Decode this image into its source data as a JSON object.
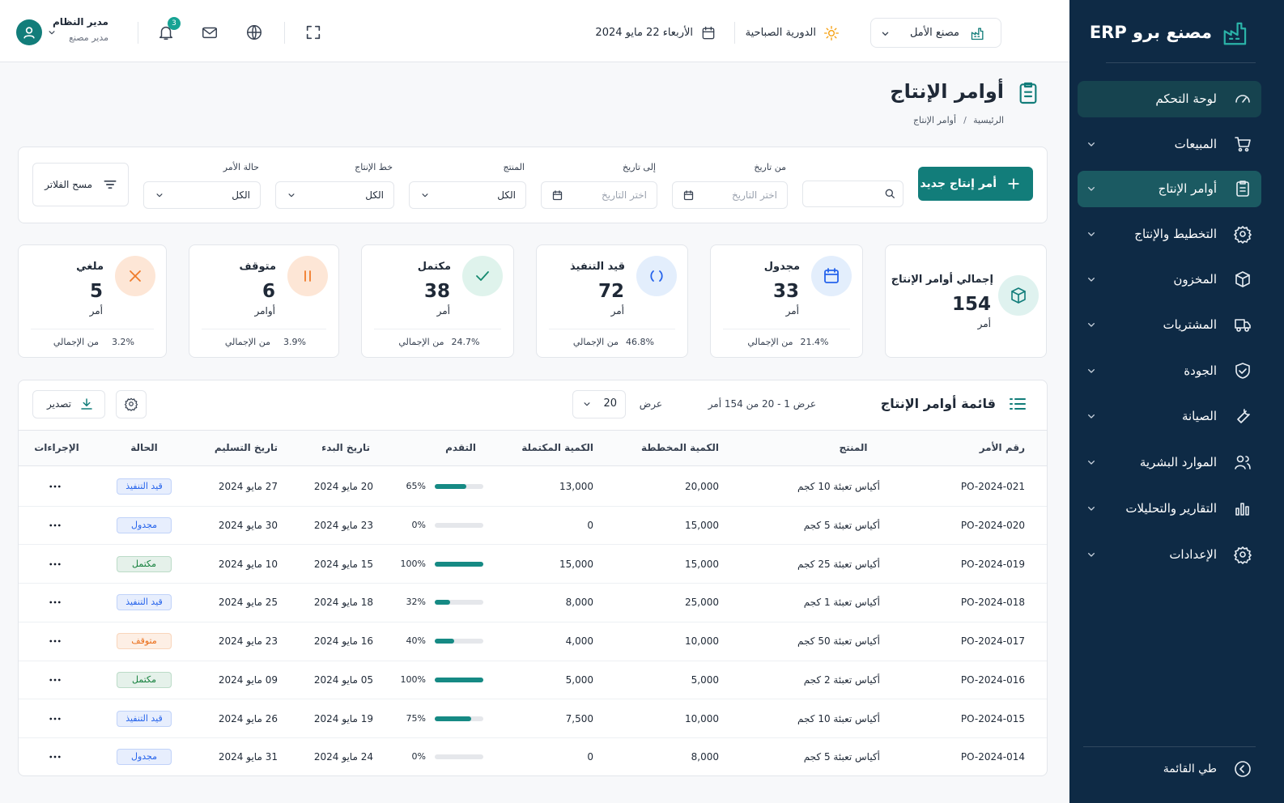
{
  "sidebar": {
    "brand": "مصنع برو ERP",
    "items": [
      {
        "label": "لوحة التحكم",
        "icon": "gauge",
        "submenu": false,
        "highlight": "#16434f"
      },
      {
        "label": "المبيعات",
        "icon": "cart",
        "submenu": true
      },
      {
        "label": "أوامر الإنتاج",
        "icon": "clip",
        "submenu": true,
        "highlight": "#1b5a62"
      },
      {
        "label": "التخطيط والإنتاج",
        "icon": "gear",
        "submenu": true
      },
      {
        "label": "المخزون",
        "icon": "box",
        "submenu": true
      },
      {
        "label": "المشتريات",
        "icon": "truck",
        "submenu": true
      },
      {
        "label": "الجودة",
        "icon": "shield",
        "submenu": true
      },
      {
        "label": "الصيانة",
        "icon": "wrench",
        "submenu": true
      },
      {
        "label": "الموارد البشرية",
        "icon": "people",
        "submenu": true
      },
      {
        "label": "التقارير والتحليلات",
        "icon": "chart",
        "submenu": true
      },
      {
        "label": "الإعدادات",
        "icon": "gear",
        "submenu": true
      }
    ],
    "collapse": "طي القائمة"
  },
  "header": {
    "user_name": "مدير النظام",
    "user_role": "مدير مصنع",
    "notifications": "3",
    "date": "الأربعاء 22 مايو 2024",
    "shift": "الدورية الصباحية",
    "factory": "مصنع الأمل"
  },
  "page": {
    "title": "أوامر الإنتاج",
    "breadcrumb": [
      "الرئيسية",
      "أوامر الإنتاج"
    ],
    "breadcrumb_separator": "/"
  },
  "filters": {
    "new_button": "أمر إنتاج جديد",
    "from_label": "من تاريخ",
    "to_label": "إلى تاريخ",
    "date_placeholder": "اختر التاريخ",
    "product_label": "المنتج",
    "line_label": "خط الإنتاج",
    "status_label": "حالة الأمر",
    "all": "الكل",
    "clear": "مسح الفلاتر"
  },
  "stats": {
    "total": {
      "label": "إجمالي أوامر الإنتاج",
      "value": 154,
      "unit": "أمر"
    },
    "share_label": "من الإجمالي",
    "cards": [
      {
        "label": "مجدول",
        "value": 33,
        "unit": "أمر",
        "percent": "21.4%",
        "color": "#2563eb",
        "bg": "#e3eefc",
        "icon": "cal"
      },
      {
        "label": "قيد التنفيذ",
        "value": 72,
        "unit": "أمر",
        "percent": "46.8%",
        "color": "#2563eb",
        "bg": "#e3eefc",
        "icon": "spin"
      },
      {
        "label": "مكتمل",
        "value": 38,
        "unit": "أمر",
        "percent": "24.7%",
        "color": "#15896f",
        "bg": "#dff3ec",
        "icon": "check"
      },
      {
        "label": "متوقف",
        "value": 6,
        "unit": "أوامر",
        "percent": "3.9%",
        "color": "#f07b2a",
        "bg": "#fde6d6",
        "icon": "pause"
      },
      {
        "label": "ملغي",
        "value": 5,
        "unit": "أمر",
        "percent": "3.2%",
        "color": "#f07b2a",
        "bg": "#fde6d6",
        "icon": "x"
      }
    ]
  },
  "table": {
    "title": "قائمة أوامر الإنتاج",
    "range": "عرض 1 - 20 من 154 أمر",
    "show": "عرض",
    "page_size": "20",
    "export": "تصدير",
    "columns": [
      "رقم الأمر",
      "المنتج",
      "الكمية المخططة",
      "الكمية المكتملة",
      "التقدم",
      "تاريخ البدء",
      "تاريخ التسليم",
      "الحالة",
      "الإجراءات"
    ],
    "rows": [
      {
        "id": "PO-2024-021",
        "product": "أكياس تعبئة 10 كجم",
        "planned": "20,000",
        "completed": "13,000",
        "progress": 65,
        "progress_label": "65%",
        "start": "20 مايو 2024",
        "end": "27 مايو 2024",
        "status": "قيد التنفيذ",
        "status_color": "#2563eb"
      },
      {
        "id": "PO-2024-020",
        "product": "أكياس تعبئة 5 كجم",
        "planned": "15,000",
        "completed": "0",
        "progress": 0,
        "progress_label": "0%",
        "start": "23 مايو 2024",
        "end": "30 مايو 2024",
        "status": "مجدول",
        "status_color": "#2563eb"
      },
      {
        "id": "PO-2024-019",
        "product": "أكياس تعبئة 25 كجم",
        "planned": "15,000",
        "completed": "15,000",
        "progress": 100,
        "progress_label": "100%",
        "start": "15 مايو 2024",
        "end": "10 مايو 2024",
        "status": "مكتمل",
        "status_color": "#15803d"
      },
      {
        "id": "PO-2024-018",
        "product": "أكياس تعبئة 1 كجم",
        "planned": "25,000",
        "completed": "8,000",
        "progress": 32,
        "progress_label": "32%",
        "start": "18 مايو 2024",
        "end": "25 مايو 2024",
        "status": "قيد التنفيذ",
        "status_color": "#2563eb"
      },
      {
        "id": "PO-2024-017",
        "product": "أكياس تعبئة 50 كجم",
        "planned": "10,000",
        "completed": "4,000",
        "progress": 40,
        "progress_label": "40%",
        "start": "16 مايو 2024",
        "end": "23 مايو 2024",
        "status": "متوقف",
        "status_color": "#ea6c16"
      },
      {
        "id": "PO-2024-016",
        "product": "أكياس تعبئة 2 كجم",
        "planned": "5,000",
        "completed": "5,000",
        "progress": 100,
        "progress_label": "100%",
        "start": "05 مايو 2024",
        "end": "09 مايو 2024",
        "status": "مكتمل",
        "status_color": "#15803d"
      },
      {
        "id": "PO-2024-015",
        "product": "أكياس تعبئة 10 كجم",
        "planned": "10,000",
        "completed": "7,500",
        "progress": 75,
        "progress_label": "75%",
        "start": "19 مايو 2024",
        "end": "26 مايو 2024",
        "status": "قيد التنفيذ",
        "status_color": "#2563eb"
      },
      {
        "id": "PO-2024-014",
        "product": "أكياس تعبئة 5 كجم",
        "planned": "8,000",
        "completed": "0",
        "progress": 0,
        "progress_label": "0%",
        "start": "24 مايو 2024",
        "end": "31 مايو 2024",
        "status": "مجدول",
        "status_color": "#2563eb"
      }
    ]
  }
}
